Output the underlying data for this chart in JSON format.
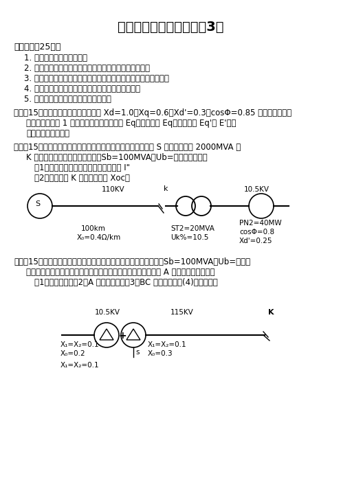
{
  "title": "电力系统暂态分析试卷（3）",
  "background": "#ffffff",
  "text_color": "#000000",
  "font_size_title": 14,
  "font_size_body": 8.5,
  "line1_heading": "一、简答（25分）",
  "line1_items": [
    "1. 简述短路的现象和危害？",
    "2. 列出电力系统的各电压等级及其对应的平均额定电压？",
    "3. 为什么在分析同步发电机三相短路电流过程时要进行派克变换？",
    "4. 输电线路中串联电容在电力系统中的作用是什么？",
    "5. 静态稳定及暂态稳定的区别是什么？"
  ],
  "line2_heading": "二、（15分）已知同步发电机的参数为 Xd=1.0，Xq=0.6，Xd'=0.3，cosΦ=0.85 滞后，当电流、",
  "line2_cont1": "电压标么值均为 1 时，求发电机的空载电势 Eq、虚构电势 Eq、暂态电势 Eq'和 E'，并",
  "line2_cont2": "作电流电压相量图。",
  "line3_heading": "三、（15分）电力系统接线如图所示，元件参数标于图中，系统 S 的短路容量为 2000MVA 当",
  "line3_cont1": "K 点发生三相短路时，试计算：（Sb=100MVA，Ub=平均额定电压）",
  "line3_items": [
    "（1）短路点的短路电流周期分量起始值 I\"",
    "（2）发电机对 K 点的计算电抗 Xoc。"
  ],
  "circuit1_label_110kv": "110KV",
  "circuit1_label_k": "k",
  "circuit1_label_105kv": "10.5KV",
  "circuit1_label_s": "S",
  "circuit1_100km": "100km",
  "circuit1_x0": "X₀=0.4Ω/km",
  "circuit1_st2": "ST2=20MVA",
  "circuit1_uk": "Uk%=10.5",
  "circuit1_pn2": "PN2=40MW",
  "circuit1_cos": "cosΦ=0.8",
  "circuit1_xd": "Xd'=0.25",
  "line4_heading": "四、（15分）如图所示系统，电抗为归算到统一基准值下的标么值（Sb=100MVA，Ub=平均额",
  "line4_cont1": "定电压），用正序等效定则计算以下各种情况短路时，短路点的 A 相正序电流有名值。",
  "line4_items": "（1）三相短路；（2）A 相接地短路；（3）BC 相接地短路。(4)两相短路。",
  "circuit2_label_105kv": "10.5KV",
  "circuit2_label_115kv": "115KV",
  "circuit2_label_k": "K",
  "circuit2_x1x2_left": "X₁=X₂=0.1",
  "circuit2_x0_left": "X₀=0.2",
  "circuit2_x1x2_mid": "X₁=X₂=0.1",
  "circuit2_x0_mid": "X₀=0.3",
  "circuit2_x1x2_bot": "X₁=X₂=0.1",
  "circuit2_s_label": "s"
}
